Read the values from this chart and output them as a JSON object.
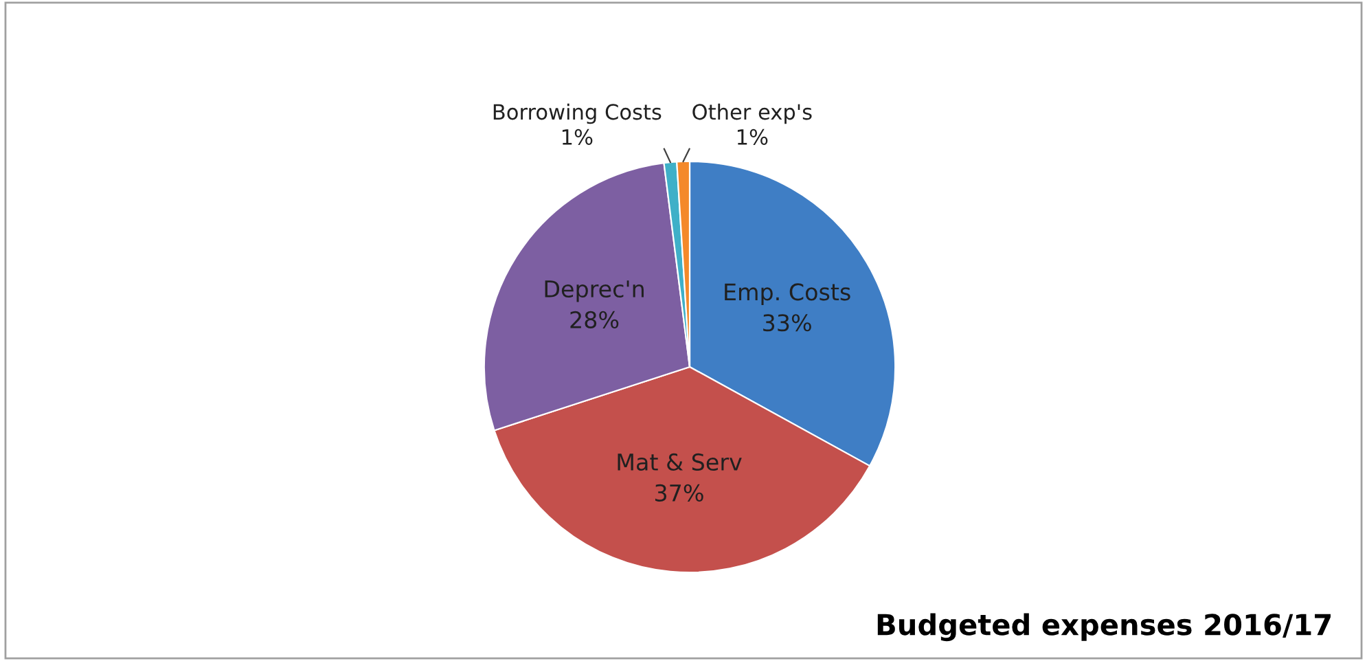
{
  "chart_data": {
    "type": "pie",
    "title": "Budgeted expenses 2016/17",
    "categories": [
      "Emp. Costs",
      "Mat & Serv",
      "Deprec'n",
      "Borrowing Costs",
      "Other exp's"
    ],
    "values": [
      33,
      37,
      28,
      1,
      1
    ],
    "value_labels": [
      "33%",
      "37%",
      "28%",
      "1%",
      "1%"
    ],
    "colors": [
      "#3f7ec5",
      "#c4504c",
      "#7d5fa2",
      "#3fb0c8",
      "#f4892a"
    ],
    "legend": false
  }
}
